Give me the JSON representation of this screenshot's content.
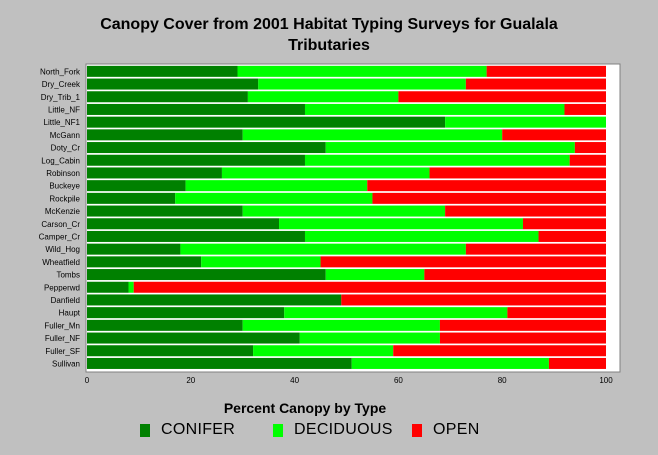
{
  "chart_data": {
    "type": "bar",
    "orientation": "horizontal",
    "stacked": true,
    "title_lines": [
      "Canopy Cover from 2001 Habitat Typing Surveys for Gualala",
      "Tributaries"
    ],
    "xlim": [
      0,
      100
    ],
    "xticks": [
      0,
      20,
      40,
      60,
      80,
      100
    ],
    "legend_title": "Percent Canopy by Type",
    "legend_position": "bottom",
    "grid": false,
    "categories": [
      "North_Fork",
      "Dry_Creek",
      "Dry_Trib_1",
      "Little_NF",
      "Little_NF1",
      "McGann",
      "Doty_Cr",
      "Log_Cabin",
      "Robinson",
      "Buckeye",
      "Rockpile",
      "McKenzie",
      "Carson_Cr",
      "Camper_Cr",
      "Wild_Hog",
      "Wheatfield",
      "Tombs",
      "Pepperwd",
      "Danfield",
      "Haupt",
      "Fuller_Mn",
      "Fuller_NF",
      "Fuller_SF",
      "Sullivan"
    ],
    "series": [
      {
        "name": "CONIFER",
        "color": "#008000",
        "values": [
          29,
          33,
          31,
          42,
          69,
          30,
          46,
          42,
          26,
          19,
          17,
          30,
          37,
          42,
          18,
          22,
          46,
          8,
          49,
          38,
          30,
          41,
          32,
          51
        ]
      },
      {
        "name": "DECIDUOUS",
        "color": "#00ff00",
        "values": [
          48,
          40,
          29,
          50,
          31,
          50,
          48,
          51,
          40,
          35,
          38,
          39,
          47,
          45,
          55,
          23,
          19,
          1,
          0,
          43,
          38,
          27,
          27,
          38
        ]
      },
      {
        "name": "OPEN",
        "color": "#ff0000",
        "values": [
          23,
          27,
          40,
          8,
          0,
          20,
          6,
          7,
          34,
          46,
          45,
          31,
          16,
          13,
          27,
          55,
          35,
          91,
          51,
          19,
          32,
          32,
          41,
          11
        ]
      }
    ]
  }
}
